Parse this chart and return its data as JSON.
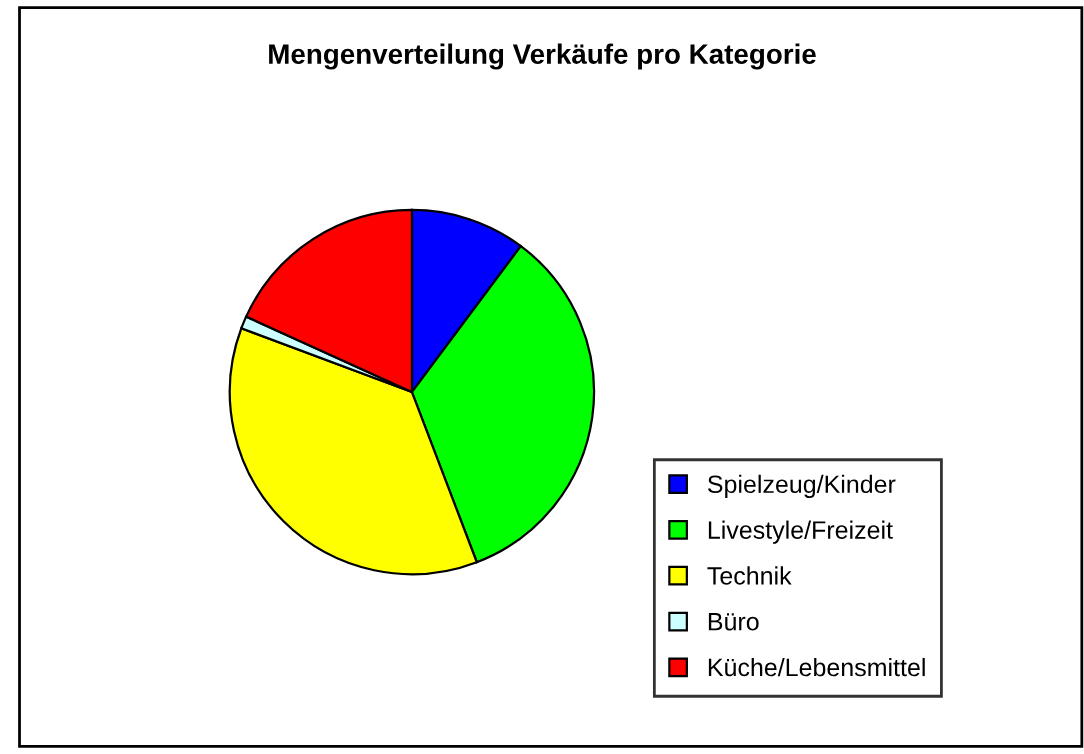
{
  "chart_data": {
    "type": "pie",
    "title": "Mengenverteilung Verkäufe pro Kategorie",
    "categories": [
      "Spielzeug/Kinder",
      "Livestyle/Freizeit",
      "Technik",
      "Büro",
      "Küche/Lebensmittel"
    ],
    "values": [
      10.2,
      34,
      36.5,
      1.1,
      18.2
    ],
    "colors": [
      "#0000ff",
      "#00ff00",
      "#ffff00",
      "#ccffff",
      "#ff0000"
    ],
    "legend": "bottom right"
  }
}
